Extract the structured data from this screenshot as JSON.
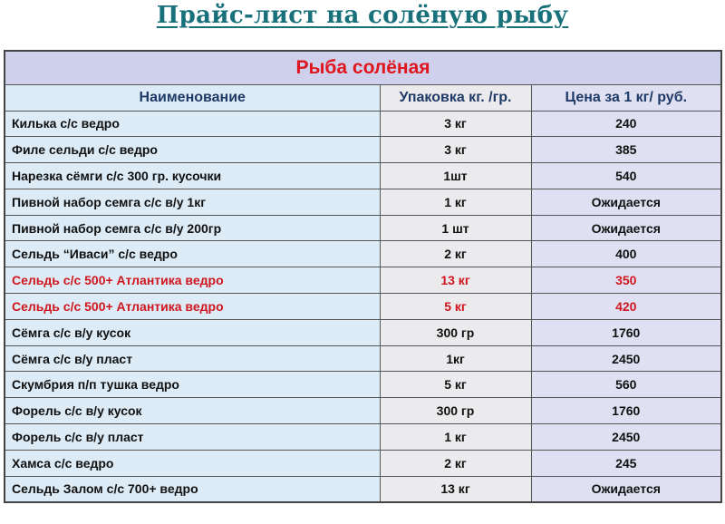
{
  "title": "Прайс-лист на солёную рыбу",
  "section_title": "Рыба солёная",
  "columns": [
    "Наименование",
    "Упаковка кг. /гр.",
    "Цена за 1 кг/ руб."
  ],
  "colors": {
    "title": "#17707a",
    "section_title": "#e0161e",
    "highlight": "#d0161e",
    "header_text": "#1f3a66"
  },
  "rows": [
    {
      "name": "Килька с/с ведро",
      "pack": "3 кг",
      "price": "240",
      "highlight": false
    },
    {
      "name": "Филе сельди с/с ведро",
      "pack": "3 кг",
      "price": "385",
      "highlight": false
    },
    {
      "name": "Нарезка сёмги с/с 300 гр. кусочки",
      "pack": "1шт",
      "price": "540",
      "highlight": false
    },
    {
      "name": "Пивной набор семга с/с в/у 1кг",
      "pack": "1 кг",
      "price": "Ожидается",
      "highlight": false
    },
    {
      "name": "Пивной набор семга с/с в/у 200гр",
      "pack": "1 шт",
      "price": "Ожидается",
      "highlight": false
    },
    {
      "name": "Сельдь “Иваси” с/с ведро",
      "pack": "2 кг",
      "price": "400",
      "highlight": false
    },
    {
      "name": "Сельдь с/с 500+ Атлантика ведро",
      "pack": "13 кг",
      "price": "350",
      "highlight": true
    },
    {
      "name": "Сельдь с/с 500+ Атлантика ведро",
      "pack": "5 кг",
      "price": "420",
      "highlight": true
    },
    {
      "name": "Сёмга с/с в/у кусок",
      "pack": "300 гр",
      "price": "1760",
      "highlight": false
    },
    {
      "name": "Сёмга с/с в/у пласт",
      "pack": "1кг",
      "price": "2450",
      "highlight": false
    },
    {
      "name": "Скумбрия п/п тушка ведро",
      "pack": "5 кг",
      "price": "560",
      "highlight": false
    },
    {
      "name": "Форель с/с в/у кусок",
      "pack": "300 гр",
      "price": "1760",
      "highlight": false
    },
    {
      "name": "Форель с/с в/у пласт",
      "pack": "1 кг",
      "price": "2450",
      "highlight": false
    },
    {
      "name": "Хамса с/с ведро",
      "pack": "2 кг",
      "price": "245",
      "highlight": false
    },
    {
      "name": "Сельдь Залом с/с 700+ ведро",
      "pack": "13 кг",
      "price": "Ожидается",
      "highlight": false
    }
  ]
}
